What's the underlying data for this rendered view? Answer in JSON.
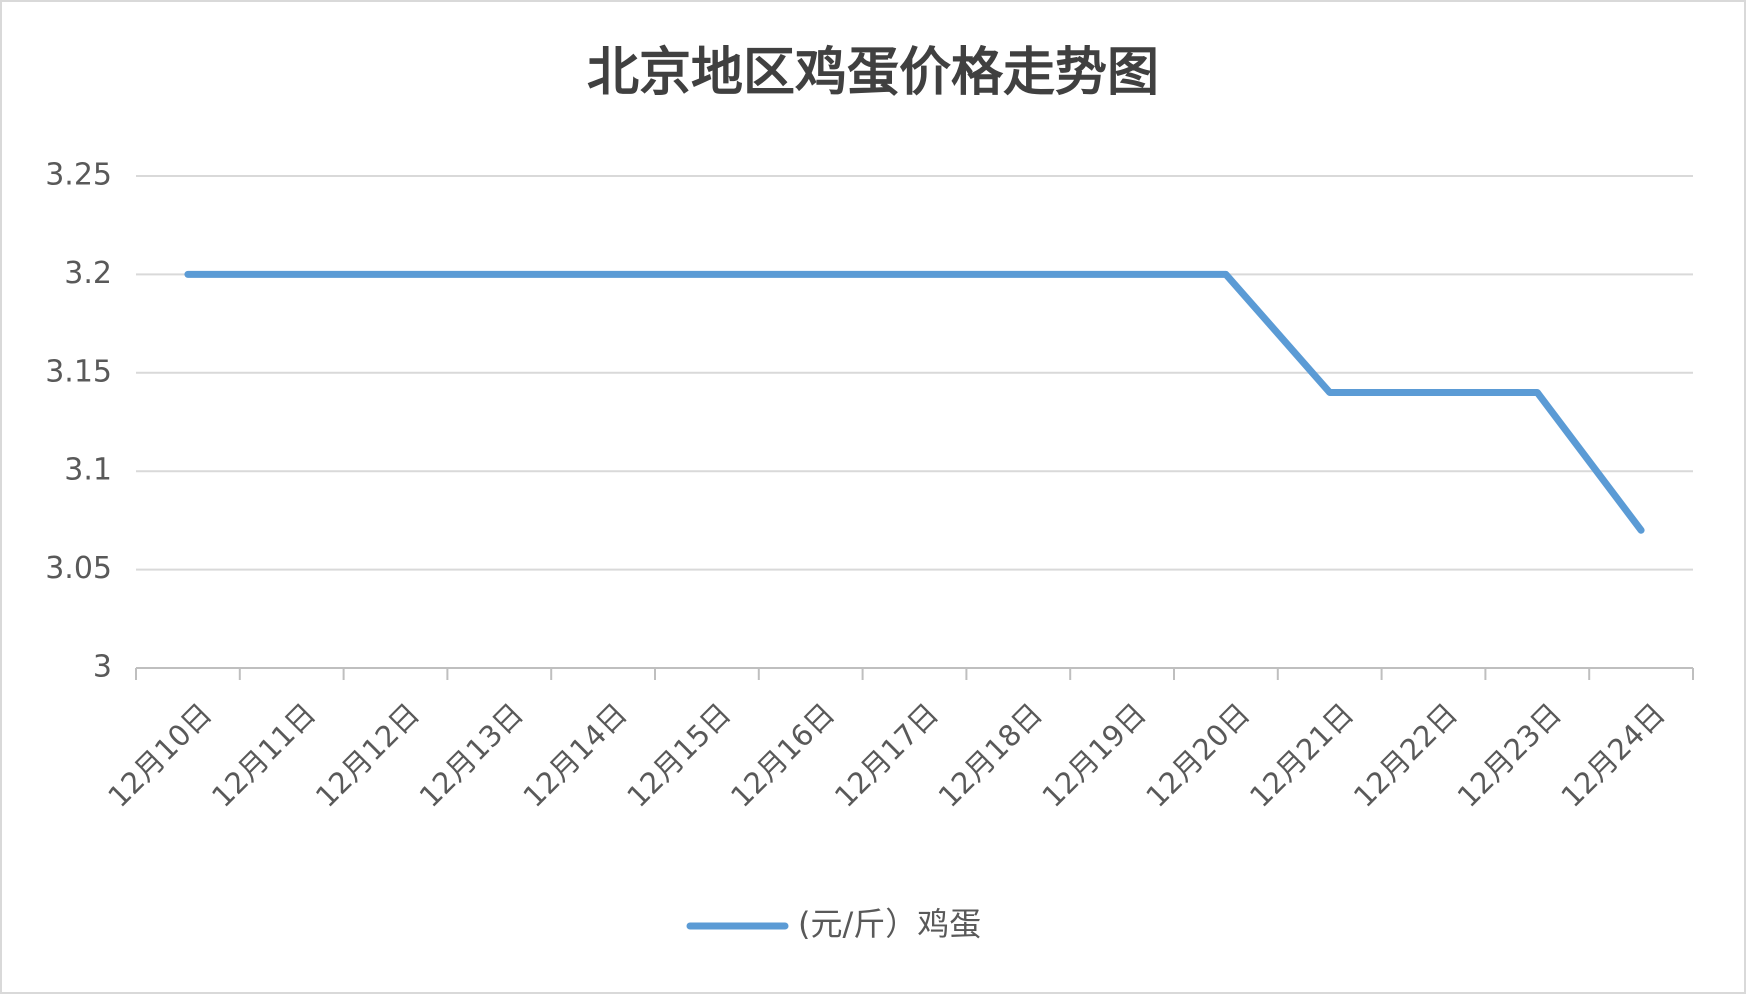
{
  "chart_data": {
    "type": "line",
    "title": "北京地区鸡蛋价格走势图",
    "categories": [
      "12月10日",
      "12月11日",
      "12月12日",
      "12月13日",
      "12月14日",
      "12月15日",
      "12月16日",
      "12月17日",
      "12月18日",
      "12月19日",
      "12月20日",
      "12月21日",
      "12月22日",
      "12月23日",
      "12月24日"
    ],
    "series": [
      {
        "name": "(元/斤）鸡蛋",
        "color": "#5b9bd5",
        "values": [
          3.2,
          3.2,
          3.2,
          3.2,
          3.2,
          3.2,
          3.2,
          3.2,
          3.2,
          3.2,
          3.2,
          3.14,
          3.14,
          3.14,
          3.07
        ]
      }
    ],
    "ylim": [
      3,
      3.25
    ],
    "yticks": [
      3,
      3.05,
      3.1,
      3.15,
      3.2,
      3.25
    ],
    "grid": true,
    "legend": "bottom"
  }
}
